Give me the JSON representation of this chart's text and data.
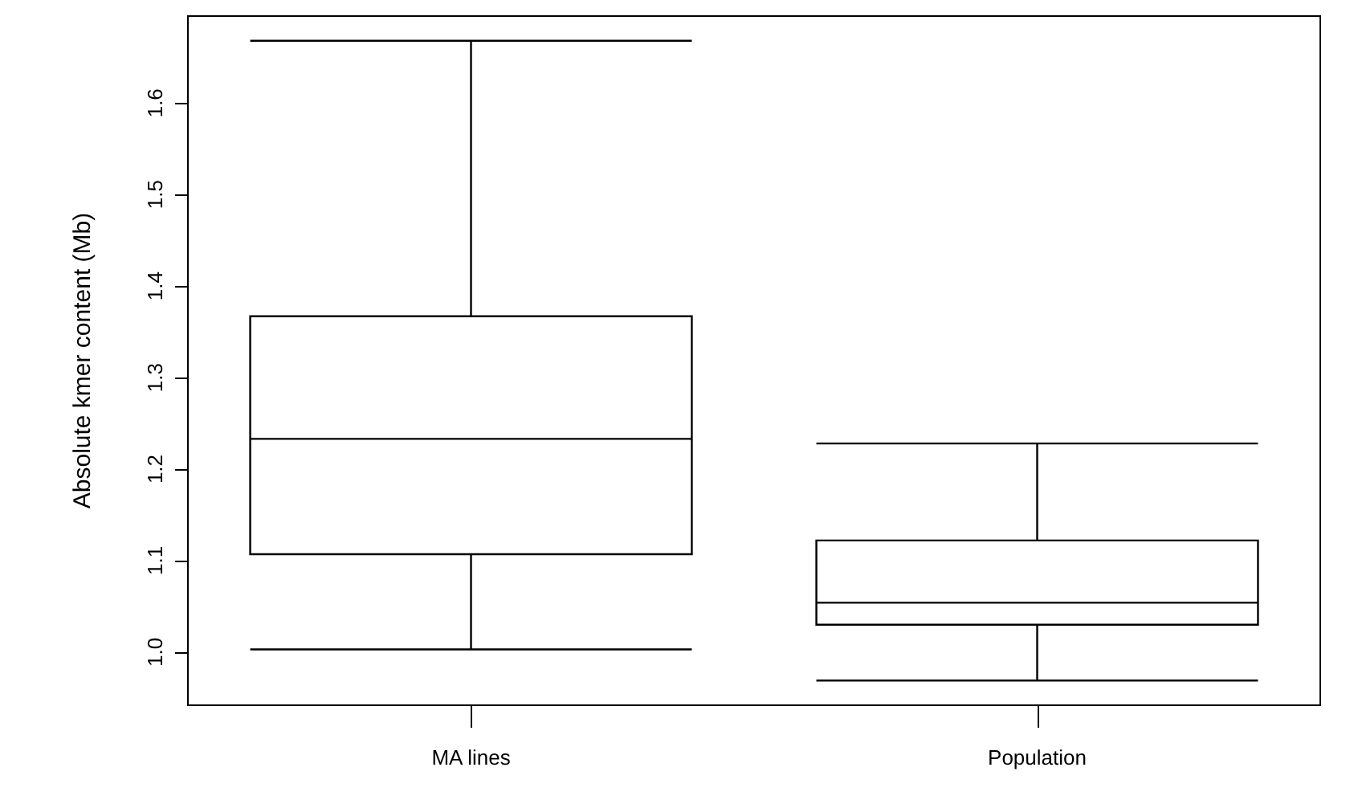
{
  "chart_data": {
    "type": "box",
    "ylabel": "Absolute kmer content (Mb)",
    "categories": [
      "MA lines",
      "Population"
    ],
    "boxes": [
      {
        "low": 1.003,
        "q1": 1.107,
        "median": 1.233,
        "q3": 1.367,
        "high": 1.668
      },
      {
        "low": 0.969,
        "q1": 1.03,
        "median": 1.054,
        "q3": 1.122,
        "high": 1.228
      }
    ],
    "ylim": [
      0.942,
      1.695
    ],
    "yticks": [
      {
        "value": 1.0,
        "label": "1.0"
      },
      {
        "value": 1.1,
        "label": "1.1"
      },
      {
        "value": 1.2,
        "label": "1.2"
      },
      {
        "value": 1.3,
        "label": "1.3"
      },
      {
        "value": 1.4,
        "label": "1.4"
      },
      {
        "value": 1.5,
        "label": "1.5"
      },
      {
        "value": 1.6,
        "label": "1.6"
      }
    ],
    "grid": false
  }
}
